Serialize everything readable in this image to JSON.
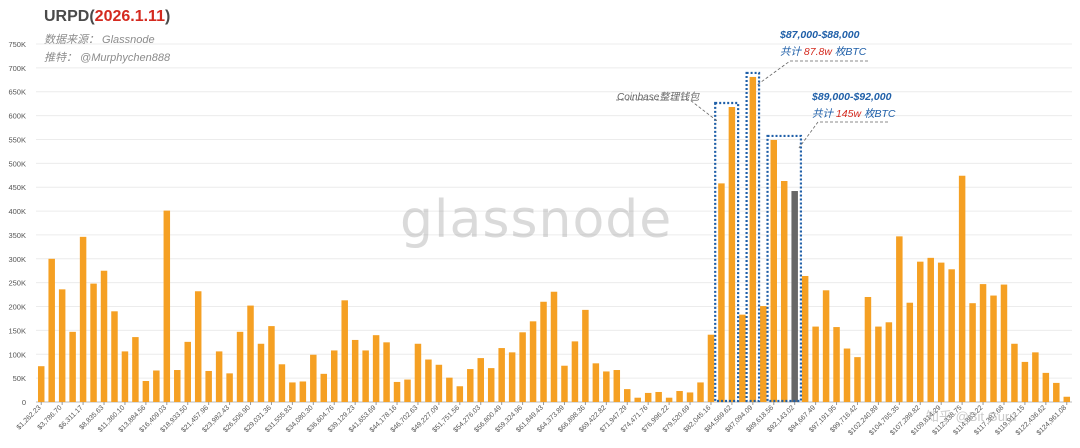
{
  "header": {
    "title_prefix": "URPD(",
    "title_date": "2026.1.11",
    "title_suffix": ")",
    "source_line": "数据来源： Glassnode",
    "author_line": "推特： @Murphychen888"
  },
  "annotations": {
    "coinbase_label": "Coinbase整理钱包",
    "box1_title": "$87,000-$88,000",
    "box1_prefix": "共计",
    "box1_value": "87.8w",
    "box1_suffix": "枚BTC",
    "box2_title": "$89,000-$92,000",
    "box2_prefix": "共计",
    "box2_value": "145w",
    "box2_suffix": "枚BTC"
  },
  "watermark": {
    "main": "glassnode",
    "corner": "知乎 @Bit Guru"
  },
  "colors": {
    "bar": "#f5a023",
    "bar_dark": "#676767",
    "box": "#1f5fa8",
    "red": "#d42a1f"
  },
  "chart_data": {
    "type": "bar",
    "title": "URPD(2026.1.11)",
    "ylim": [
      0,
      750000
    ],
    "yticks": [
      {
        "value": 0,
        "label": "0"
      },
      {
        "value": 50000,
        "label": "50K"
      },
      {
        "value": 100000,
        "label": "100K"
      },
      {
        "value": 150000,
        "label": "150K"
      },
      {
        "value": 200000,
        "label": "200K"
      },
      {
        "value": 250000,
        "label": "250K"
      },
      {
        "value": 300000,
        "label": "300K"
      },
      {
        "value": 350000,
        "label": "350K"
      },
      {
        "value": 400000,
        "label": "400K"
      },
      {
        "value": 450000,
        "label": "450K"
      },
      {
        "value": 500000,
        "label": "500K"
      },
      {
        "value": 550000,
        "label": "550K"
      },
      {
        "value": 600000,
        "label": "600K"
      },
      {
        "value": 650000,
        "label": "650K"
      },
      {
        "value": 700000,
        "label": "700K"
      },
      {
        "value": 750000,
        "label": "750K"
      }
    ],
    "xticks": [
      {
        "index": 0,
        "label": "$1,262.23"
      },
      {
        "index": 2,
        "label": "$3,786.70"
      },
      {
        "index": 4,
        "label": "$6,311.17"
      },
      {
        "index": 6,
        "label": "$8,835.63"
      },
      {
        "index": 8,
        "label": "$11,360.10"
      },
      {
        "index": 10,
        "label": "$13,884.56"
      },
      {
        "index": 12,
        "label": "$16,409.03"
      },
      {
        "index": 14,
        "label": "$18,933.50"
      },
      {
        "index": 16,
        "label": "$21,457.96"
      },
      {
        "index": 18,
        "label": "$23,982.43"
      },
      {
        "index": 20,
        "label": "$26,506.90"
      },
      {
        "index": 22,
        "label": "$29,031.36"
      },
      {
        "index": 24,
        "label": "$31,555.83"
      },
      {
        "index": 26,
        "label": "$34,080.30"
      },
      {
        "index": 28,
        "label": "$36,604.76"
      },
      {
        "index": 30,
        "label": "$39,129.23"
      },
      {
        "index": 32,
        "label": "$41,653.69"
      },
      {
        "index": 34,
        "label": "$44,178.16"
      },
      {
        "index": 36,
        "label": "$46,702.63"
      },
      {
        "index": 38,
        "label": "$49,227.09"
      },
      {
        "index": 40,
        "label": "$51,751.56"
      },
      {
        "index": 42,
        "label": "$54,276.03"
      },
      {
        "index": 44,
        "label": "$56,800.49"
      },
      {
        "index": 46,
        "label": "$59,324.96"
      },
      {
        "index": 48,
        "label": "$61,849.43"
      },
      {
        "index": 50,
        "label": "$64,373.89"
      },
      {
        "index": 52,
        "label": "$66,898.36"
      },
      {
        "index": 54,
        "label": "$69,422.82"
      },
      {
        "index": 56,
        "label": "$71,947.29"
      },
      {
        "index": 58,
        "label": "$74,471.76"
      },
      {
        "index": 60,
        "label": "$76,996.22"
      },
      {
        "index": 62,
        "label": "$79,520.69"
      },
      {
        "index": 64,
        "label": "$82,045.16"
      },
      {
        "index": 66,
        "label": "$84,569.62"
      },
      {
        "index": 68,
        "label": "$87,094.09"
      },
      {
        "index": 70,
        "label": "$89,618.56"
      },
      {
        "index": 72,
        "label": "$92,143.02"
      },
      {
        "index": 74,
        "label": "$94,667.49"
      },
      {
        "index": 76,
        "label": "$97,191.95"
      },
      {
        "index": 78,
        "label": "$99,716.42"
      },
      {
        "index": 80,
        "label": "$102,240.89"
      },
      {
        "index": 82,
        "label": "$104,765.35"
      },
      {
        "index": 84,
        "label": "$107,289.82"
      },
      {
        "index": 86,
        "label": "$109,814.29"
      },
      {
        "index": 88,
        "label": "$112,338.75"
      },
      {
        "index": 90,
        "label": "$114,863.22"
      },
      {
        "index": 92,
        "label": "$117,387.68"
      },
      {
        "index": 94,
        "label": "$119,912.15"
      },
      {
        "index": 96,
        "label": "$122,436.62"
      },
      {
        "index": 98,
        "label": "$124,961.08"
      }
    ],
    "highlight_dark_index": 72,
    "values": [
      75000,
      300000,
      236000,
      147000,
      346000,
      248000,
      275000,
      190000,
      106000,
      136000,
      44000,
      66000,
      401000,
      67000,
      126000,
      232000,
      65000,
      106000,
      60000,
      147000,
      202000,
      122000,
      159000,
      79000,
      41000,
      43000,
      99000,
      59000,
      108000,
      213000,
      130000,
      108000,
      140000,
      125000,
      42000,
      47000,
      122000,
      89000,
      78000,
      51000,
      33000,
      69000,
      92000,
      71000,
      113000,
      104000,
      146000,
      169000,
      210000,
      231000,
      76000,
      127000,
      193000,
      81000,
      64000,
      67000,
      27000,
      9000,
      19000,
      21000,
      9000,
      23000,
      20000,
      41000,
      141000,
      458000,
      618000,
      183000,
      681000,
      201000,
      549000,
      463000,
      442000,
      264000,
      158000,
      234000,
      157000,
      112000,
      94000,
      220000,
      158000,
      167000,
      347000,
      208000,
      294000,
      302000,
      292000,
      278000,
      474000,
      207000,
      247000,
      223000,
      246000,
      122000,
      84000,
      104000,
      61000,
      40000,
      11000
    ]
  }
}
